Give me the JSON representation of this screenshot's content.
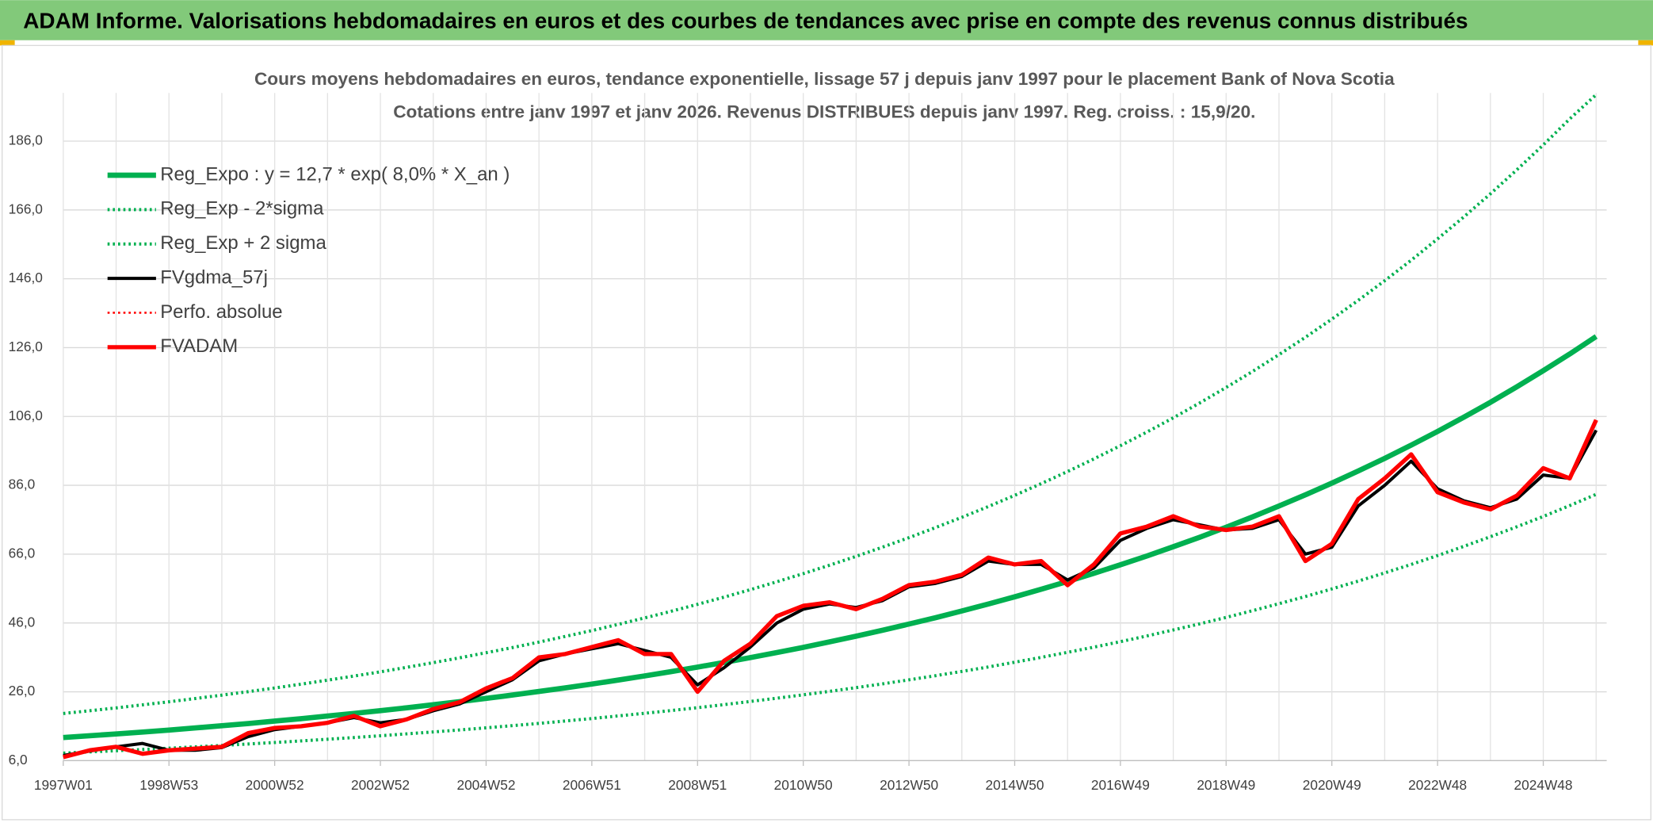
{
  "header": {
    "title": "ADAM Informe. Valorisations hebdomadaires en euros et des courbes de tendances avec prise en compte des revenus connus distribués"
  },
  "chart_data": {
    "type": "line",
    "title": "Cours moyens hebdomadaires en euros, tendance exponentielle, lissage 57 j depuis janv 1997 pour le placement Bank of Nova Scotia",
    "subtitle": "Cotations entre janv 1997 et janv 2026. Revenus DISTRIBUES depuis janv 1997. Reg. croiss. : 15,9/20.",
    "categories": [
      "1997W01",
      null,
      null,
      null,
      "1998W53",
      null,
      null,
      null,
      "2000W52",
      null,
      null,
      null,
      "2002W52",
      null,
      null,
      null,
      "2004W52",
      null,
      null,
      null,
      "2006W51",
      null,
      null,
      null,
      "2008W51",
      null,
      null,
      null,
      "2010W50",
      null,
      null,
      null,
      "2012W50",
      null,
      null,
      null,
      "2014W50",
      null,
      null,
      null,
      "2016W49",
      null,
      null,
      null,
      "2018W49",
      null,
      null,
      null,
      "2020W49",
      null,
      null,
      null,
      "2022W48",
      null,
      null,
      null,
      "2024W48",
      null,
      null
    ],
    "ylim": [
      6,
      200
    ],
    "yticks": [
      {
        "value": 6,
        "label": "6,0"
      },
      {
        "value": 26,
        "label": "26,0"
      },
      {
        "value": 46,
        "label": "46,0"
      },
      {
        "value": 66,
        "label": "66,0"
      },
      {
        "value": 86,
        "label": "86,0"
      },
      {
        "value": 106,
        "label": "106,0"
      },
      {
        "value": 126,
        "label": "126,0"
      },
      {
        "value": 146,
        "label": "146,0"
      },
      {
        "value": 166,
        "label": "166,0"
      },
      {
        "value": 186,
        "label": "186,0"
      }
    ],
    "grid": true,
    "legend": "top-left",
    "series": [
      {
        "name": "Reg_Expo : y = 12,7 * exp( 8,0% *  X_an )",
        "color": "#00b050",
        "style": "solid",
        "width": 5,
        "values": [
          12.7,
          13.22,
          13.76,
          14.32,
          14.9,
          15.51,
          16.14,
          16.8,
          17.49,
          18.2,
          18.95,
          19.72,
          20.52,
          21.36,
          22.23,
          23.14,
          24.09,
          25.07,
          26.09,
          27.16,
          28.26,
          29.42,
          30.62,
          31.87,
          33.17,
          34.52,
          35.93,
          37.4,
          38.92,
          40.51,
          42.17,
          43.89,
          45.68,
          47.54,
          49.48,
          51.5,
          53.6,
          55.79,
          58.07,
          60.44,
          62.9,
          65.47,
          68.14,
          70.92,
          73.82,
          76.83,
          79.97,
          83.23,
          86.63,
          90.16,
          93.84,
          97.67,
          101.66,
          105.81,
          110.12,
          114.62,
          119.29,
          124.16,
          129.23
        ]
      },
      {
        "name": "Reg_Exp - 2*sigma",
        "color": "#00b050",
        "style": "dotted",
        "width": 3,
        "values": [
          8.19,
          8.53,
          8.88,
          9.24,
          9.61,
          10.01,
          10.41,
          10.84,
          11.28,
          11.74,
          12.23,
          12.72,
          13.24,
          13.78,
          14.34,
          14.93,
          15.54,
          16.17,
          16.83,
          17.52,
          18.23,
          18.98,
          19.75,
          20.56,
          21.4,
          22.27,
          23.18,
          24.13,
          25.11,
          26.14,
          27.21,
          28.32,
          29.47,
          30.67,
          31.92,
          33.23,
          34.58,
          35.99,
          37.46,
          38.99,
          40.58,
          42.24,
          43.96,
          45.76,
          47.63,
          49.57,
          51.6,
          53.7,
          55.89,
          58.17,
          60.55,
          63.01,
          65.59,
          68.27,
          71.05,
          73.95,
          76.96,
          80.11,
          83.38
        ]
      },
      {
        "name": "Reg_Exp + 2 sigma",
        "color": "#00b050",
        "style": "dotted",
        "width": 3,
        "values": [
          19.69,
          20.49,
          21.33,
          22.2,
          23.1,
          24.04,
          25.02,
          26.04,
          27.11,
          28.21,
          29.37,
          30.57,
          31.81,
          33.11,
          34.46,
          35.87,
          37.34,
          38.86,
          40.44,
          42.1,
          43.8,
          45.6,
          47.46,
          49.4,
          51.41,
          53.51,
          55.69,
          57.97,
          60.33,
          62.79,
          65.36,
          68.03,
          70.8,
          73.69,
          76.69,
          79.83,
          83.08,
          86.47,
          90.01,
          93.68,
          97.5,
          101.48,
          105.62,
          109.93,
          114.42,
          119.09,
          123.95,
          129.01,
          134.28,
          139.75,
          145.45,
          151.39,
          157.57,
          164.01,
          170.69,
          177.66,
          184.9,
          192.45,
          199.5
        ]
      },
      {
        "name": "FVgdma_57j",
        "color": "#000000",
        "style": "solid",
        "width": 3,
        "values": [
          7.5,
          8.8,
          10,
          11,
          9,
          9,
          9.8,
          13,
          15,
          16,
          17,
          18.5,
          17,
          18,
          20.5,
          22.5,
          26,
          29.5,
          35,
          37,
          38.5,
          40,
          38,
          36,
          28,
          33,
          39,
          46,
          50,
          51.5,
          50.5,
          52.5,
          56.5,
          57.5,
          59.5,
          64,
          63,
          63,
          58.5,
          62,
          70,
          73.5,
          76,
          74.5,
          73,
          73.5,
          76,
          66,
          68,
          80,
          86,
          93,
          85,
          81.5,
          79.5,
          82,
          89,
          88,
          102
        ]
      },
      {
        "name": "Perfo. absolue",
        "color": "#ff0000",
        "style": "dotted",
        "width": 2,
        "values": [
          7,
          9,
          10,
          8,
          9,
          9.5,
          10,
          14,
          15.5,
          16,
          17,
          19,
          16,
          18,
          21,
          23,
          27,
          30,
          36,
          37,
          39,
          41,
          37,
          37,
          26,
          35,
          40,
          48,
          51,
          52,
          50,
          53,
          57,
          58,
          60,
          65,
          63,
          64,
          57,
          63,
          72,
          74,
          77,
          74,
          73,
          74,
          77,
          64,
          69,
          82,
          88,
          95,
          84,
          81,
          79,
          83,
          91,
          88,
          105
        ]
      },
      {
        "name": "FVADAM",
        "color": "#ff0000",
        "style": "solid",
        "width": 4,
        "values": [
          7,
          9,
          10,
          8,
          9,
          9.5,
          10,
          14,
          15.5,
          16,
          17,
          19,
          16,
          18,
          21,
          23,
          27,
          30,
          36,
          37,
          39,
          41,
          37,
          37,
          26,
          35,
          40,
          48,
          51,
          52,
          50,
          53,
          57,
          58,
          60,
          65,
          63,
          64,
          57,
          63,
          72,
          74,
          77,
          74,
          73,
          74,
          77,
          64,
          69,
          82,
          88,
          95,
          84,
          81,
          79,
          83,
          91,
          88,
          105
        ]
      }
    ]
  }
}
